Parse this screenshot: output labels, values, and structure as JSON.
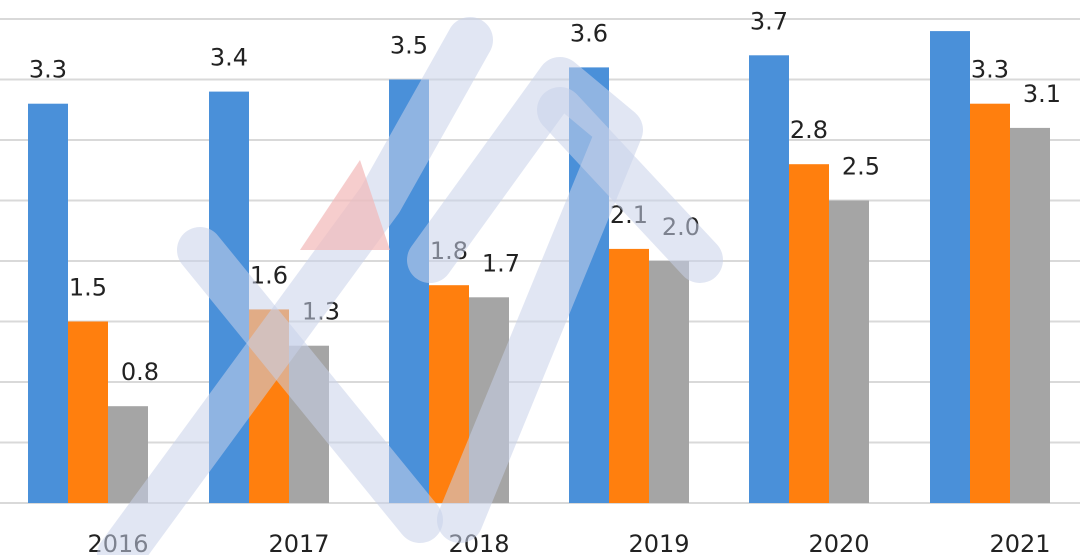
{
  "chart_data": {
    "type": "bar",
    "categories": [
      "2016",
      "2017",
      "2018",
      "2019",
      "2020",
      "2021"
    ],
    "series": [
      {
        "color": "#4a90d9",
        "values": [
          3.3,
          3.4,
          3.5,
          3.6,
          3.7,
          null
        ],
        "labels": [
          "3.3",
          "3.4",
          "3.5",
          "3.6",
          "3.7",
          ""
        ]
      },
      {
        "color": "#ff7f0e",
        "values": [
          1.5,
          1.6,
          1.8,
          2.1,
          2.8,
          3.3
        ],
        "labels": [
          "1.5",
          "1.6",
          "1.8",
          "2.1",
          "2.8",
          "3.3"
        ]
      },
      {
        "color": "#a5a5a5",
        "values": [
          0.8,
          1.3,
          1.7,
          2.0,
          2.5,
          3.1
        ],
        "labels": [
          "0.8",
          "1.3",
          "1.7",
          "2.0",
          "2.5",
          "3.1"
        ]
      }
    ],
    "series_0_2021_estimate": 3.9,
    "ylim": [
      0,
      4.0
    ],
    "grid": true,
    "legend": "none"
  }
}
